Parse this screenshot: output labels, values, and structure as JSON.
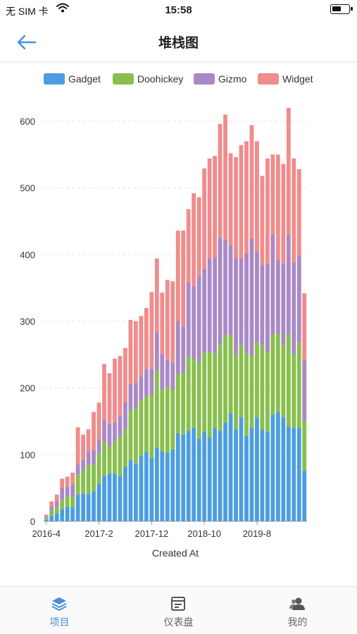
{
  "status_bar": {
    "carrier": "无 SIM 卡",
    "time": "15:58",
    "battery_level": 0.55
  },
  "nav": {
    "title": "堆栈图"
  },
  "tabs": [
    {
      "label": "项目",
      "icon": "layers-icon",
      "active": true
    },
    {
      "label": "仪表盘",
      "icon": "dashboard-icon",
      "active": false
    },
    {
      "label": "我的",
      "icon": "users-icon",
      "active": false
    }
  ],
  "colors": {
    "accent": "#4a90d9",
    "Gadget": "#4c9de0",
    "Doohickey": "#88bf4d",
    "Gizmo": "#a989c5",
    "Widget": "#ef8c8c"
  },
  "chart_data": {
    "type": "bar",
    "stacked": true,
    "xlabel": "Created At",
    "ylabel": "",
    "ylim": [
      0,
      600
    ],
    "yticks": [
      0,
      100,
      200,
      300,
      400,
      500,
      600
    ],
    "xtick_labels": [
      "2016-4",
      "2017-2",
      "2017-12",
      "2018-10",
      "2019-8"
    ],
    "xtick_indices": [
      0,
      10,
      20,
      30,
      40
    ],
    "legend": [
      "Gadget",
      "Doohickey",
      "Gizmo",
      "Widget"
    ],
    "legend_position": "top",
    "grid": true,
    "categories": [
      "2016-4",
      "2016-5",
      "2016-6",
      "2016-7",
      "2016-8",
      "2016-9",
      "2016-10",
      "2016-11",
      "2016-12",
      "2017-1",
      "2017-2",
      "2017-3",
      "2017-4",
      "2017-5",
      "2017-6",
      "2017-7",
      "2017-8",
      "2017-9",
      "2017-10",
      "2017-11",
      "2017-12",
      "2018-1",
      "2018-2",
      "2018-3",
      "2018-4",
      "2018-5",
      "2018-6",
      "2018-7",
      "2018-8",
      "2018-9",
      "2018-10",
      "2018-11",
      "2018-12",
      "2019-1",
      "2019-2",
      "2019-3",
      "2019-4",
      "2019-5",
      "2019-6",
      "2019-7",
      "2019-8",
      "2019-9",
      "2019-10",
      "2019-11",
      "2019-12",
      "2020-1",
      "2020-2",
      "2020-3",
      "2020-4",
      "2020-5"
    ],
    "series": [
      {
        "name": "Gadget",
        "values": [
          2,
          8,
          12,
          18,
          22,
          21,
          40,
          42,
          41,
          45,
          56,
          68,
          72,
          72,
          68,
          82,
          92,
          86,
          98,
          104,
          95,
          110,
          105,
          102,
          108,
          132,
          130,
          136,
          140,
          124,
          135,
          126,
          140,
          136,
          148,
          162,
          138,
          156,
          128,
          140,
          156,
          138,
          134,
          160,
          164,
          156,
          142,
          140,
          140,
          76
        ]
      },
      {
        "name": "Doohickey",
        "values": [
          2,
          8,
          10,
          14,
          15,
          16,
          29,
          34,
          44,
          40,
          46,
          52,
          40,
          48,
          60,
          56,
          74,
          84,
          84,
          84,
          94,
          116,
          92,
          100,
          90,
          88,
          92,
          112,
          104,
          114,
          118,
          128,
          112,
          130,
          132,
          116,
          112,
          108,
          124,
          108,
          112,
          126,
          120,
          120,
          118,
          108,
          138,
          110,
          128,
          74
        ]
      },
      {
        "name": "Gizmo",
        "values": [
          2,
          6,
          8,
          18,
          15,
          18,
          16,
          16,
          20,
          22,
          20,
          32,
          34,
          28,
          30,
          40,
          40,
          38,
          36,
          40,
          40,
          58,
          54,
          40,
          40,
          80,
          70,
          110,
          108,
          130,
          126,
          140,
          144,
          160,
          142,
          136,
          144,
          130,
          150,
          176,
          136,
          120,
          132,
          150,
          110,
          122,
          150,
          138,
          130,
          92
        ]
      },
      {
        "name": "Widget",
        "values": [
          4,
          8,
          10,
          14,
          15,
          18,
          56,
          38,
          33,
          57,
          56,
          84,
          76,
          96,
          90,
          82,
          96,
          92,
          90,
          92,
          115,
          110,
          92,
          120,
          122,
          136,
          144,
          110,
          140,
          118,
          150,
          150,
          152,
          170,
          188,
          138,
          152,
          170,
          168,
          170,
          166,
          134,
          158,
          120,
          158,
          150,
          190,
          156,
          130,
          100
        ]
      }
    ]
  }
}
